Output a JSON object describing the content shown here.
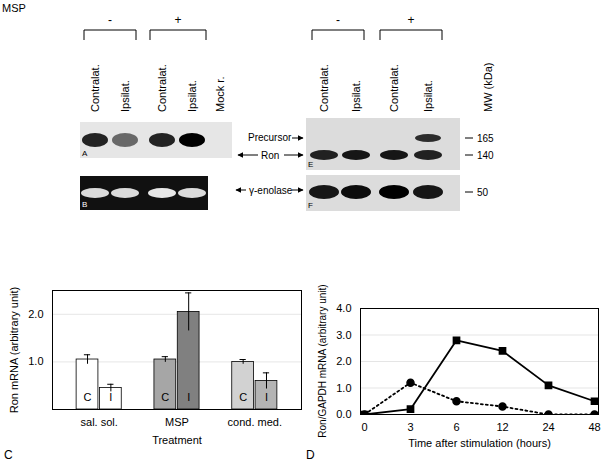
{
  "figure": {
    "treatment_label": "MSP",
    "groups": [
      "-",
      "+"
    ],
    "arrows": {
      "precursor": "Precursor",
      "ron": "Ron",
      "enolase": "γ-enolase"
    },
    "left_blots": {
      "lanes": [
        "Contralat.",
        "Ipsilat.",
        "Contralat.",
        "Ipsilat.",
        "Mock r."
      ],
      "panels": [
        {
          "letter": "A",
          "ron": [
            0.85,
            0.55,
            0.85,
            1,
            0
          ]
        },
        {
          "letter": "B",
          "enolase": [
            0.85,
            0.85,
            0.9,
            0.85,
            null
          ]
        }
      ]
    },
    "right_blots": {
      "lanes": [
        "Contralat.",
        "Ipsilat.",
        "Contralat.",
        "Ipsilat."
      ],
      "panels": [
        {
          "letter": "E",
          "ron": [
            0.85,
            0.9,
            0.9,
            0.85
          ],
          "precursor": [
            0,
            0,
            0,
            0.8
          ]
        },
        {
          "letter": "F",
          "enolase": [
            0.9,
            0.95,
            1,
            0.9
          ]
        }
      ]
    },
    "mw": {
      "title": "MW (kDa)",
      "markers": [
        165,
        140,
        50
      ]
    }
  },
  "chart_data": [
    {
      "type": "bar",
      "panel": "C",
      "ylabel": "Ron mRNA (arbitrary unit)",
      "xlabel": "Treatment",
      "categories": [
        "sal. sol.",
        "MSP",
        "cond. med."
      ],
      "ylim": [
        0,
        2.5
      ],
      "yticks": [
        1,
        2
      ],
      "grid": true,
      "series": [
        {
          "name": "C",
          "colors": [
            "#ffffff",
            "#a6a6a6",
            "#d2d2d2"
          ],
          "values": [
            1.05,
            1.05,
            1.0
          ],
          "errors": [
            0.1,
            0.06,
            0.05
          ]
        },
        {
          "name": "I",
          "colors": [
            "#ffffff",
            "#808080",
            "#b4b4b4"
          ],
          "values": [
            0.45,
            2.05,
            0.6
          ],
          "errors": [
            0.08,
            0.4,
            0.17
          ]
        }
      ]
    },
    {
      "type": "line",
      "panel": "D",
      "ylabel": "Ron/GAPDH mRNA (arbitrary unit)",
      "xlabel": "Time after stimulation (hours)",
      "categories": [
        0,
        3,
        6,
        12,
        24,
        48
      ],
      "ylim": [
        0,
        4
      ],
      "yticks": [
        0,
        1,
        2,
        3,
        4
      ],
      "grid": true,
      "series": [
        {
          "color": "#000000",
          "marker": "square",
          "line_style": "solid",
          "values": [
            0,
            0.2,
            2.8,
            2.4,
            1.1,
            0.5
          ]
        },
        {
          "color": "#000000",
          "marker": "circle",
          "line_style": "dotted",
          "values": [
            0,
            1.2,
            0.5,
            0.3,
            0,
            0
          ]
        }
      ]
    }
  ]
}
